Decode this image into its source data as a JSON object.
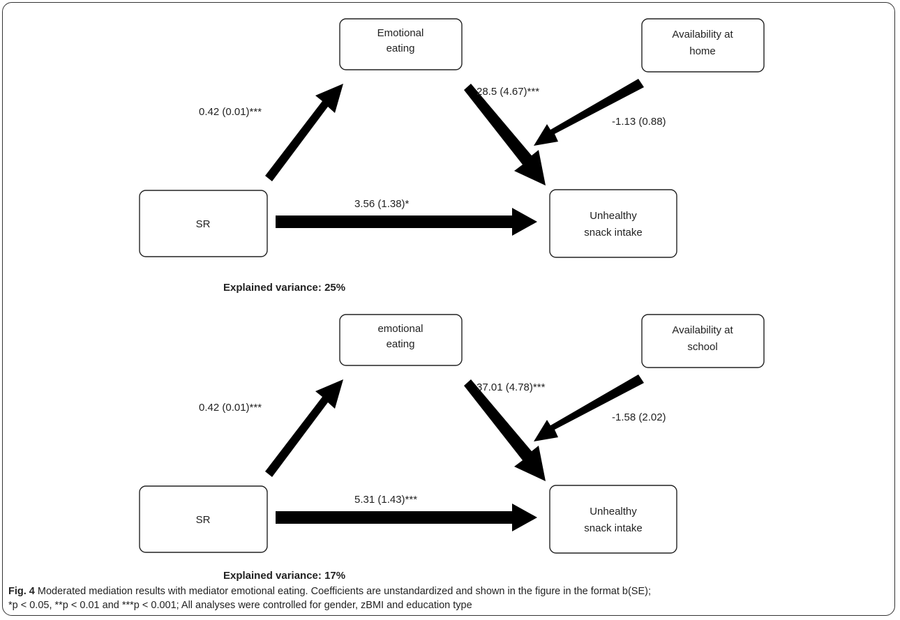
{
  "panels": [
    {
      "nodes": {
        "mediator": [
          "Emotional",
          "eating"
        ],
        "moderator": [
          "Availability at",
          "home"
        ],
        "predictor": [
          "SR"
        ],
        "outcome": [
          "Unhealthy",
          "snack intake"
        ]
      },
      "coefficients": {
        "a_path": "0.42 (0.01)***",
        "b_path": "28.5 (4.67)***",
        "moderation": "-1.13 (0.88)",
        "direct": "3.56 (1.38)*"
      },
      "explained_variance": "Explained variance: 25%"
    },
    {
      "nodes": {
        "mediator": [
          "emotional",
          "eating"
        ],
        "moderator": [
          "Availability at",
          "school"
        ],
        "predictor": [
          "SR"
        ],
        "outcome": [
          "Unhealthy",
          "snack intake"
        ]
      },
      "coefficients": {
        "a_path": "0.42 (0.01)***",
        "b_path": "37.01 (4.78)***",
        "moderation": "-1.58 (2.02)",
        "direct": "5.31 (1.43)***"
      },
      "explained_variance": "Explained variance: 17%"
    }
  ],
  "caption": {
    "fig_label": "Fig. 4",
    "line1": " Moderated mediation results with mediator emotional eating. Coefficients are unstandardized and shown in the figure in the format b(SE);",
    "line2_p1": "*p < 0.05, **p < 0.01 and ***p < 0.001; All analyses were controlled for gender, zBMI and education type"
  }
}
